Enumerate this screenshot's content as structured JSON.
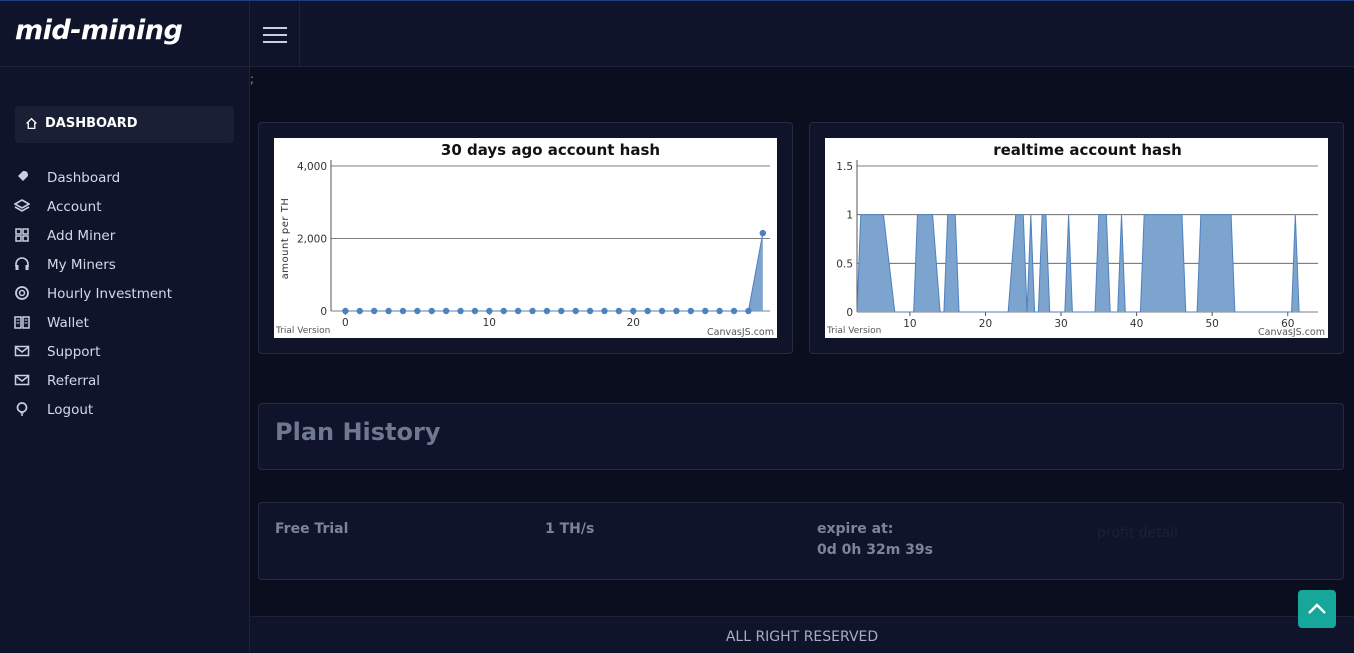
{
  "brand": {
    "logo_text": "mid-mining"
  },
  "breadcrumb": ";",
  "sidebar": {
    "header": {
      "label": "DASHBOARD",
      "icon": "home-icon"
    },
    "items": [
      {
        "label": "Dashboard",
        "icon": "rocket-icon"
      },
      {
        "label": "Account",
        "icon": "layers-icon"
      },
      {
        "label": "Add Miner",
        "icon": "grid-icon"
      },
      {
        "label": "My Miners",
        "icon": "headphones-icon"
      },
      {
        "label": "Hourly Investment",
        "icon": "life-ring-icon"
      },
      {
        "label": "Wallet",
        "icon": "book-icon"
      },
      {
        "label": "Support",
        "icon": "mail-icon"
      },
      {
        "label": "Referral",
        "icon": "mail-icon"
      },
      {
        "label": "Logout",
        "icon": "bulb-icon"
      }
    ]
  },
  "chart_data": [
    {
      "type": "area",
      "title": "30 days ago account hash",
      "ylabel": "amount per TH",
      "xlabel": "",
      "ylim": [
        0,
        4000
      ],
      "yticks": [
        "4,000",
        "2,000",
        "0"
      ],
      "xticks": [
        "0",
        "10",
        "20"
      ],
      "x": [
        0,
        1,
        2,
        3,
        4,
        5,
        6,
        7,
        8,
        9,
        10,
        11,
        12,
        13,
        14,
        15,
        16,
        17,
        18,
        19,
        20,
        21,
        22,
        23,
        24,
        25,
        26,
        27,
        28,
        29
      ],
      "series": [
        {
          "values": [
            0,
            0,
            0,
            0,
            0,
            0,
            0,
            0,
            0,
            0,
            0,
            0,
            0,
            0,
            0,
            0,
            0,
            0,
            0,
            0,
            0,
            0,
            0,
            0,
            0,
            0,
            0,
            0,
            0,
            2150
          ]
        }
      ],
      "markers": true,
      "grid": true,
      "watermark_left": "Trial Version",
      "watermark_right": "CanvasJS.com"
    },
    {
      "type": "area",
      "title": "realtime account hash",
      "ylabel": "",
      "xlabel": "",
      "ylim": [
        0,
        1.5
      ],
      "yticks": [
        "1.5",
        "1",
        "0.5",
        "0"
      ],
      "xticks": [
        "10",
        "20",
        "30",
        "40",
        "50",
        "60"
      ],
      "xlim": [
        3,
        64
      ],
      "series": [
        {
          "values": [
            [
              3,
              0
            ],
            [
              3.5,
              1
            ],
            [
              6.5,
              1
            ],
            [
              8,
              0
            ],
            [
              10.5,
              0
            ],
            [
              11,
              1
            ],
            [
              13,
              1
            ],
            [
              14,
              0
            ],
            [
              14.5,
              0
            ],
            [
              15,
              1
            ],
            [
              16,
              1
            ],
            [
              16.5,
              0
            ],
            [
              23,
              0
            ],
            [
              24,
              1
            ],
            [
              25,
              1
            ],
            [
              25.5,
              0
            ],
            [
              26,
              1
            ],
            [
              26.5,
              0
            ],
            [
              27,
              0
            ],
            [
              27.5,
              1
            ],
            [
              28,
              1
            ],
            [
              28.5,
              0
            ],
            [
              30.5,
              0
            ],
            [
              31,
              1
            ],
            [
              31.5,
              0
            ],
            [
              34.5,
              0
            ],
            [
              35,
              1
            ],
            [
              36,
              1
            ],
            [
              36.5,
              0
            ],
            [
              37.5,
              0
            ],
            [
              38,
              1
            ],
            [
              38.5,
              0
            ],
            [
              40.5,
              0
            ],
            [
              41,
              1
            ],
            [
              46,
              1
            ],
            [
              46.5,
              0
            ],
            [
              48,
              0
            ],
            [
              48.5,
              1
            ],
            [
              52.5,
              1
            ],
            [
              53,
              0
            ],
            [
              60.5,
              0
            ],
            [
              61,
              1
            ],
            [
              61.5,
              0
            ],
            [
              62,
              0
            ]
          ]
        }
      ],
      "grid": true,
      "watermark_left": "Trial Version",
      "watermark_right": "CanvasJS.com"
    }
  ],
  "plan_history": {
    "title": "Plan History",
    "rows": [
      {
        "plan": "Free Trial",
        "rate": "1 TH/s",
        "expire_label": "expire at:",
        "expire_value": "0d 0h 32m 39s",
        "profit_link": "profit detail"
      }
    ]
  },
  "footer": {
    "text": "ALL RIGHT RESERVED"
  },
  "colors": {
    "accent": "#17a79a",
    "chart_fill": "#7da3cf",
    "chart_line": "#4f81bd"
  }
}
